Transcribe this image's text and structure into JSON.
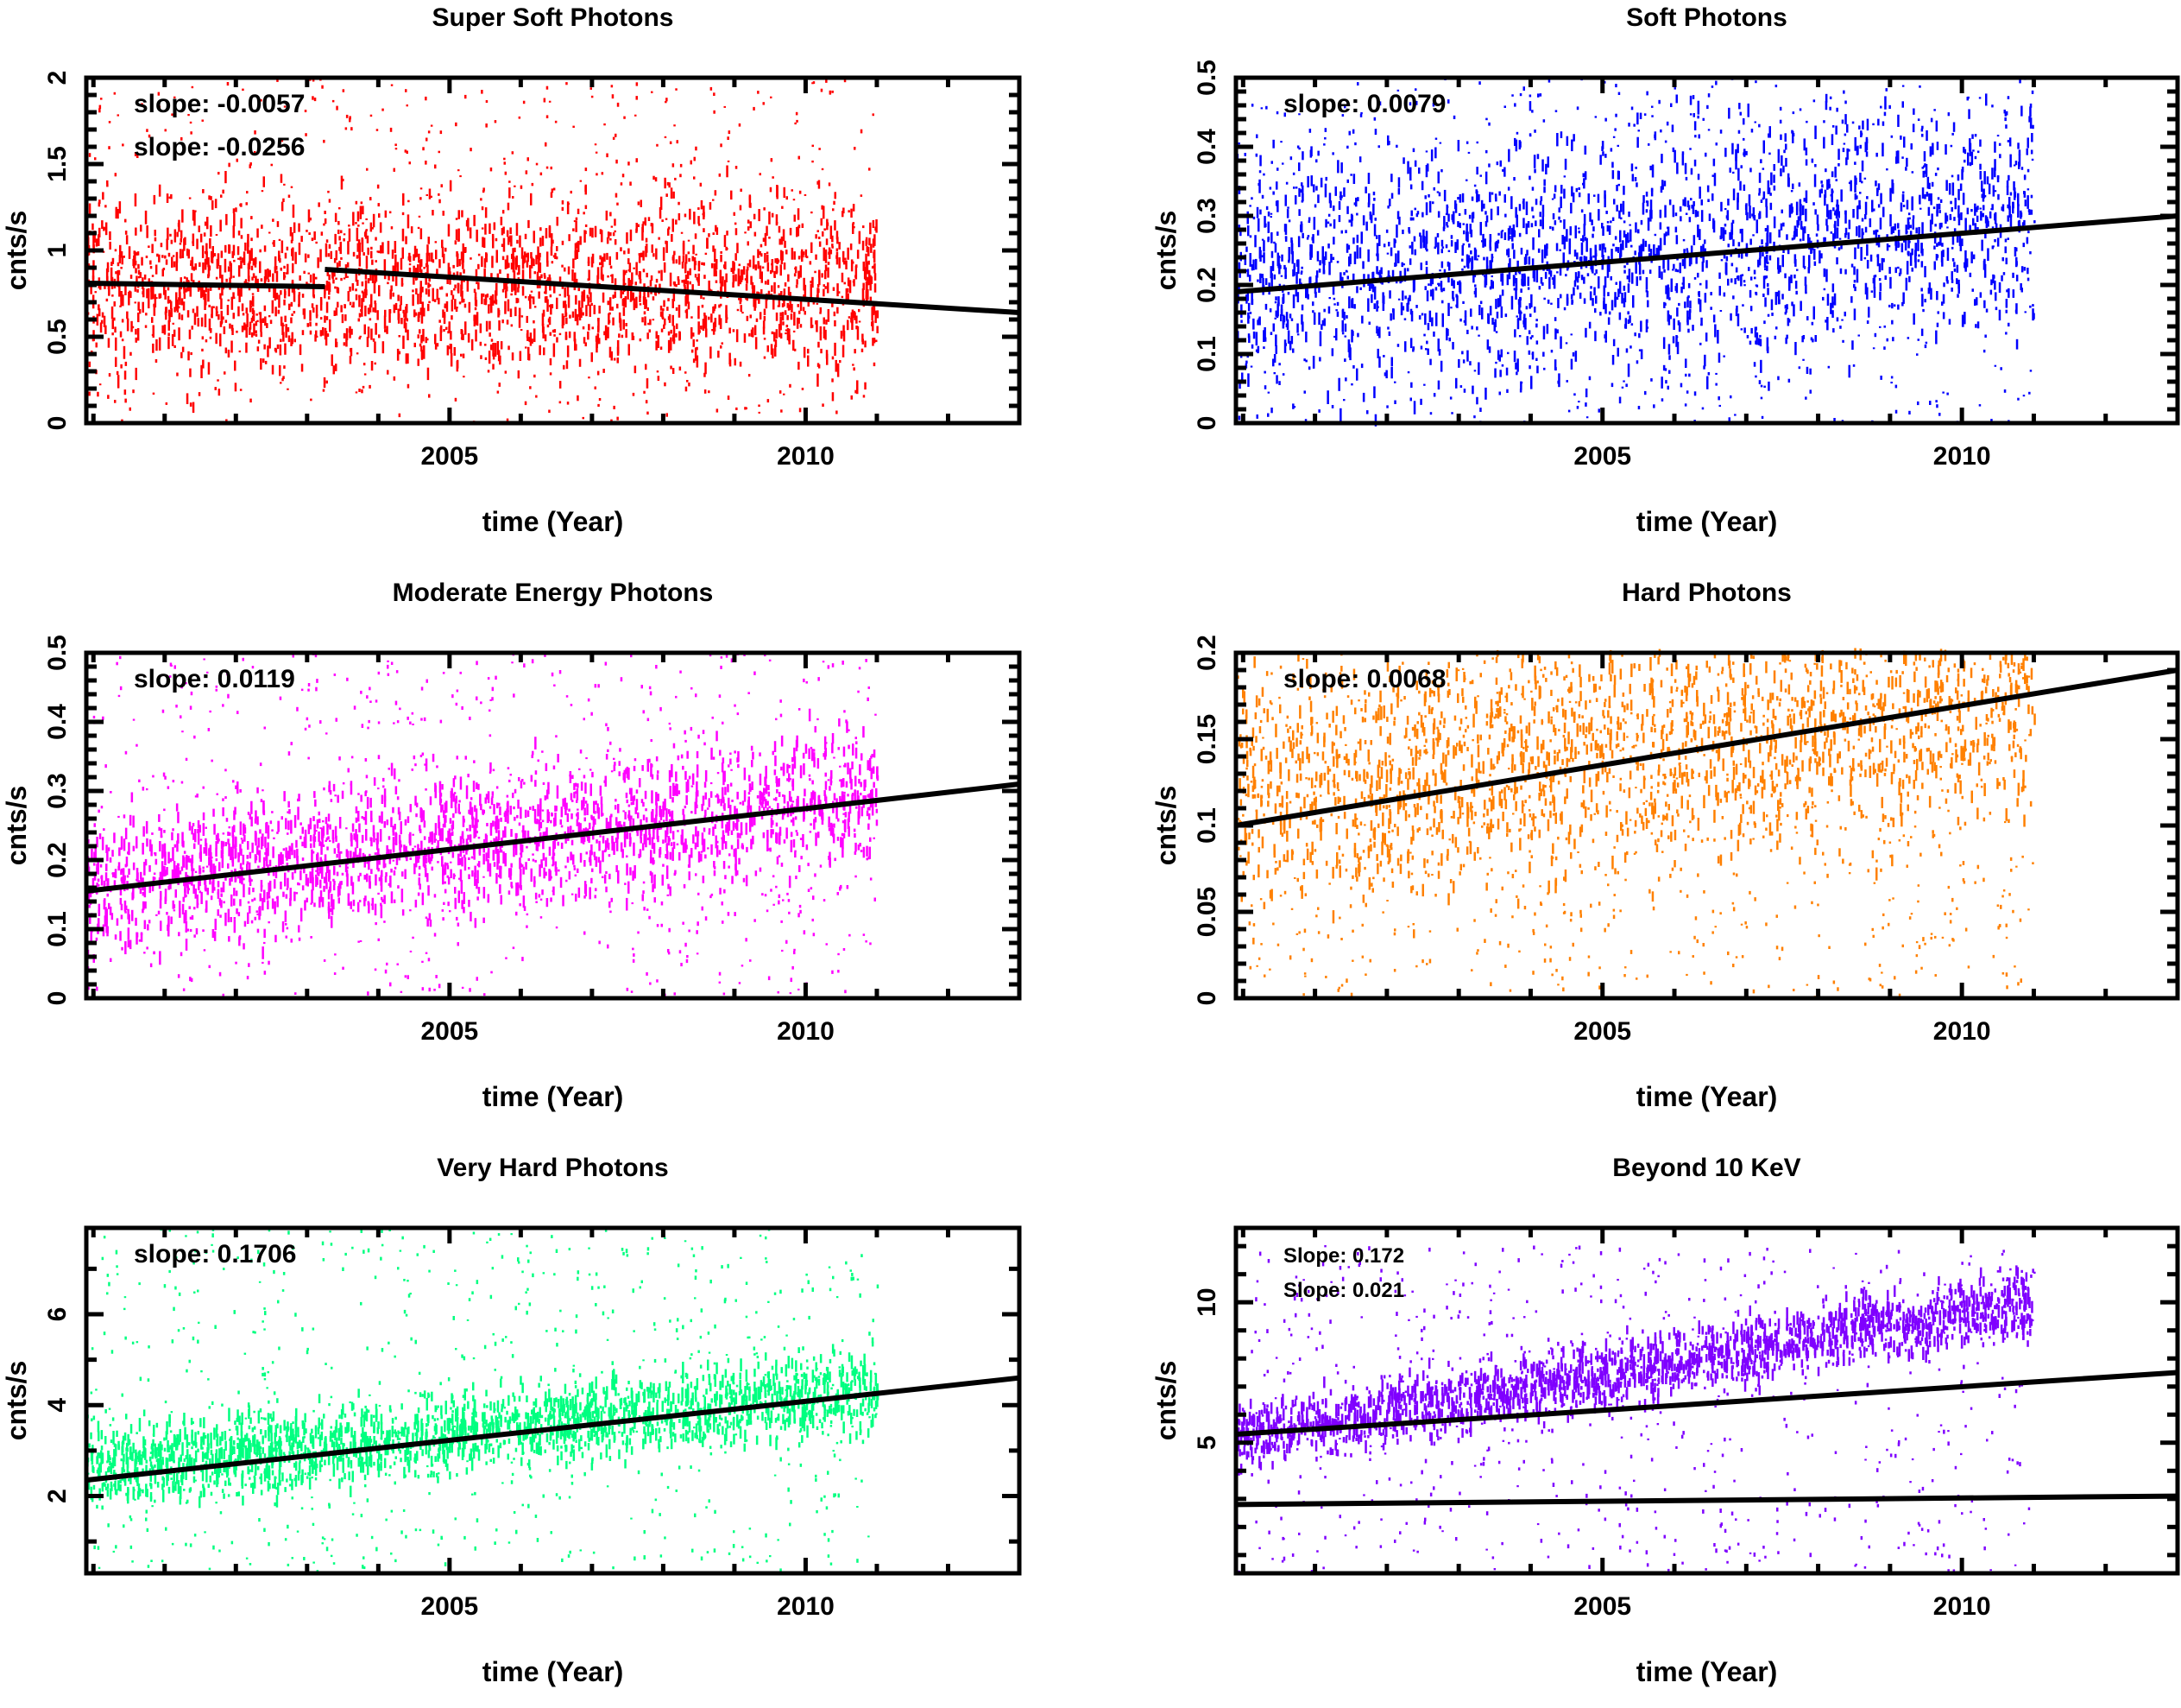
{
  "chart_data": [
    {
      "type": "scatter",
      "title": "Super Soft Photons",
      "xlabel": "time (Year)",
      "ylabel": "cnts/s",
      "xlim": [
        1999.9,
        2013.0
      ],
      "ylim": [
        0,
        2
      ],
      "xticks": [
        2005,
        2010
      ],
      "xticks_minor_step": 1,
      "yticks": [
        0,
        0.5,
        1,
        1.5,
        2
      ],
      "ytick_labels": [
        "0",
        "0.5",
        "1",
        "1.5",
        "2"
      ],
      "yticks_minor_step": 0.1,
      "color": "#ff0000",
      "data_x_range": [
        1999.9,
        2011.0
      ],
      "annotations": [
        "slope:  -0.0057",
        "slope:  -0.0256"
      ],
      "fit_lines": [
        {
          "x": [
            1999.9,
            2003.25
          ],
          "y": [
            0.81,
            0.79
          ]
        },
        {
          "x": [
            2003.25,
            2013.0
          ],
          "y": [
            0.89,
            0.64
          ]
        }
      ],
      "scatter_profile": {
        "center_start": 0.8,
        "center_end": 0.8,
        "spread": 0.35,
        "max": 2.0
      }
    },
    {
      "type": "scatter",
      "title": "Soft Photons",
      "xlabel": "time (Year)",
      "ylabel": "cnts/s",
      "xlim": [
        1999.9,
        2013.0
      ],
      "ylim": [
        0,
        0.5
      ],
      "xticks": [
        2005,
        2010
      ],
      "xticks_minor_step": 1,
      "yticks": [
        0,
        0.1,
        0.2,
        0.3,
        0.4,
        0.5
      ],
      "ytick_labels": [
        "0",
        "0.1",
        "0.2",
        "0.3",
        "0.4",
        "0.5"
      ],
      "yticks_minor_step": 0.02,
      "color": "#0000ff",
      "data_x_range": [
        1999.9,
        2011.0
      ],
      "annotations": [
        "slope: 0.0079"
      ],
      "fit_lines": [
        {
          "x": [
            1999.9,
            2013.0
          ],
          "y": [
            0.19,
            0.3
          ]
        }
      ],
      "scatter_profile": {
        "center_start": 0.2,
        "center_end": 0.3,
        "spread": 0.12,
        "max": 0.5
      }
    },
    {
      "type": "scatter",
      "title": "Moderate Energy Photons",
      "xlabel": "time (Year)",
      "ylabel": "cnts/s",
      "xlim": [
        1999.9,
        2013.0
      ],
      "ylim": [
        0,
        0.5
      ],
      "xticks": [
        2005,
        2010
      ],
      "xticks_minor_step": 1,
      "yticks": [
        0,
        0.1,
        0.2,
        0.3,
        0.4,
        0.5
      ],
      "ytick_labels": [
        "0",
        "0.1",
        "0.2",
        "0.3",
        "0.4",
        "0.5"
      ],
      "yticks_minor_step": 0.02,
      "color": "#ff00ff",
      "data_x_range": [
        1999.9,
        2011.0
      ],
      "annotations": [
        "slope: 0.0119"
      ],
      "fit_lines": [
        {
          "x": [
            1999.9,
            2013.0
          ],
          "y": [
            0.155,
            0.31
          ]
        }
      ],
      "scatter_profile": {
        "center_start": 0.16,
        "center_end": 0.29,
        "spread": 0.07,
        "max": 0.5
      }
    },
    {
      "type": "scatter",
      "title": "Hard Photons",
      "xlabel": "time (Year)",
      "ylabel": "cnts/s",
      "xlim": [
        1999.9,
        2013.0
      ],
      "ylim": [
        0,
        0.2
      ],
      "xticks": [
        2005,
        2010
      ],
      "xticks_minor_step": 1,
      "yticks": [
        0,
        0.05,
        0.1,
        0.15,
        0.2
      ],
      "ytick_labels": [
        "0",
        "0.05",
        "0.1",
        "0.15",
        "0.2"
      ],
      "yticks_minor_step": 0.01,
      "color": "#ff8000",
      "data_x_range": [
        1999.9,
        2011.0
      ],
      "annotations": [
        "slope: 0.0068"
      ],
      "fit_lines": [
        {
          "x": [
            1999.9,
            2013.0
          ],
          "y": [
            0.1,
            0.19
          ]
        }
      ],
      "scatter_profile": {
        "center_start": 0.12,
        "center_end": 0.17,
        "spread": 0.05,
        "max": 0.2
      }
    },
    {
      "type": "scatter",
      "title": "Very Hard  Photons",
      "xlabel": "time (Year)",
      "ylabel": "cnts/s",
      "xlim": [
        1999.9,
        2013.0
      ],
      "ylim": [
        0.3,
        7.9
      ],
      "xticks": [
        2005,
        2010
      ],
      "xticks_minor_step": 1,
      "yticks": [
        2,
        4,
        6
      ],
      "ytick_labels": [
        "2",
        "4",
        "6"
      ],
      "yticks_minor_step": 1,
      "color": "#00ff80",
      "data_x_range": [
        1999.9,
        2011.0
      ],
      "annotations": [
        "slope: 0.1706"
      ],
      "fit_lines": [
        {
          "x": [
            1999.9,
            2013.0
          ],
          "y": [
            2.35,
            4.6
          ]
        }
      ],
      "scatter_profile": {
        "center_start": 2.6,
        "center_end": 4.3,
        "spread": 0.6,
        "max": 7.9
      }
    },
    {
      "type": "scatter",
      "title": "Beyond 10 KeV",
      "xlabel": "time (Year)",
      "ylabel": "cnts/s",
      "xlim": [
        1999.9,
        2013.0
      ],
      "ylim": [
        0.35,
        12.65
      ],
      "xticks": [
        2005,
        2010
      ],
      "xticks_minor_step": 1,
      "yticks": [
        5,
        10
      ],
      "ytick_labels": [
        "5",
        "10"
      ],
      "yticks_minor_step": 1,
      "color": "#7f00ff",
      "data_x_range": [
        1999.9,
        2011.0
      ],
      "annotations": [
        "Slope: 0.172",
        "Slope: 0.021"
      ],
      "fit_lines": [
        {
          "x": [
            1999.9,
            2013.0
          ],
          "y": [
            5.3,
            7.5
          ]
        },
        {
          "x": [
            1999.9,
            2013.0
          ],
          "y": [
            2.8,
            3.1
          ]
        }
      ],
      "scatter_profile": {
        "center_start": 5.2,
        "center_end": 10.0,
        "spread": 0.8,
        "max": 12.0
      }
    }
  ]
}
